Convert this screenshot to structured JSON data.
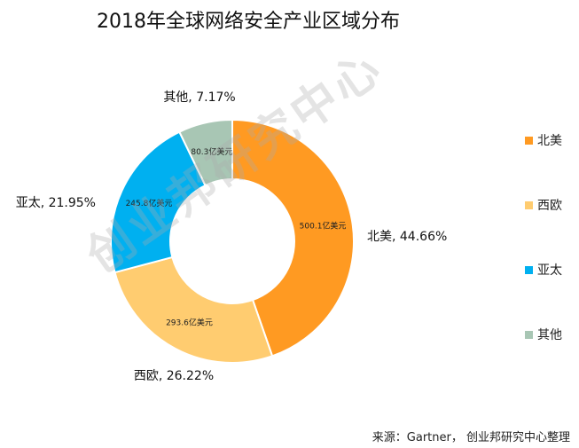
{
  "chart_data": {
    "type": "pie",
    "title": "2018年全球网络安全产业区域分布",
    "unit": "亿美元",
    "slices": [
      {
        "name": "北美",
        "percent": 44.66,
        "percent_label": "北美, 44.66%",
        "value_label": "500.1亿美元",
        "color": "#FF9A22"
      },
      {
        "name": "西欧",
        "percent": 26.22,
        "percent_label": "西欧, 26.22%",
        "value_label": "293.6亿美元",
        "color": "#FFCC70"
      },
      {
        "name": "亚太",
        "percent": 21.95,
        "percent_label": "亚太, 21.95%",
        "value_label": "245.8亿美元",
        "color": "#00B0F0"
      },
      {
        "name": "其他",
        "percent": 7.17,
        "percent_label": "其他, 7.17%",
        "value_label": "80.3亿美元",
        "color": "#A8C6B4"
      }
    ],
    "legend_position": "right"
  },
  "source": "来源：Gartner， 创业邦研究中心整理",
  "watermark": "创业邦研究中心"
}
